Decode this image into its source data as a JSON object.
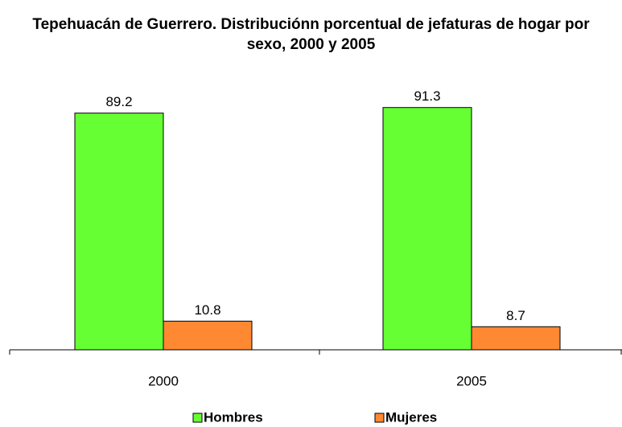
{
  "chart_data": {
    "type": "bar",
    "title": "Tepehuacán de Guerrero. Distribuciónn porcentual de jefaturas de hogar por sexo, 2000 y 2005",
    "categories": [
      "2000",
      "2005"
    ],
    "series": [
      {
        "name": "Hombres",
        "color": "#66ff33",
        "values": [
          89.2,
          91.3
        ]
      },
      {
        "name": "Mujeres",
        "color": "#ff8833",
        "values": [
          10.8,
          8.7
        ]
      }
    ],
    "legend": "bottom"
  }
}
